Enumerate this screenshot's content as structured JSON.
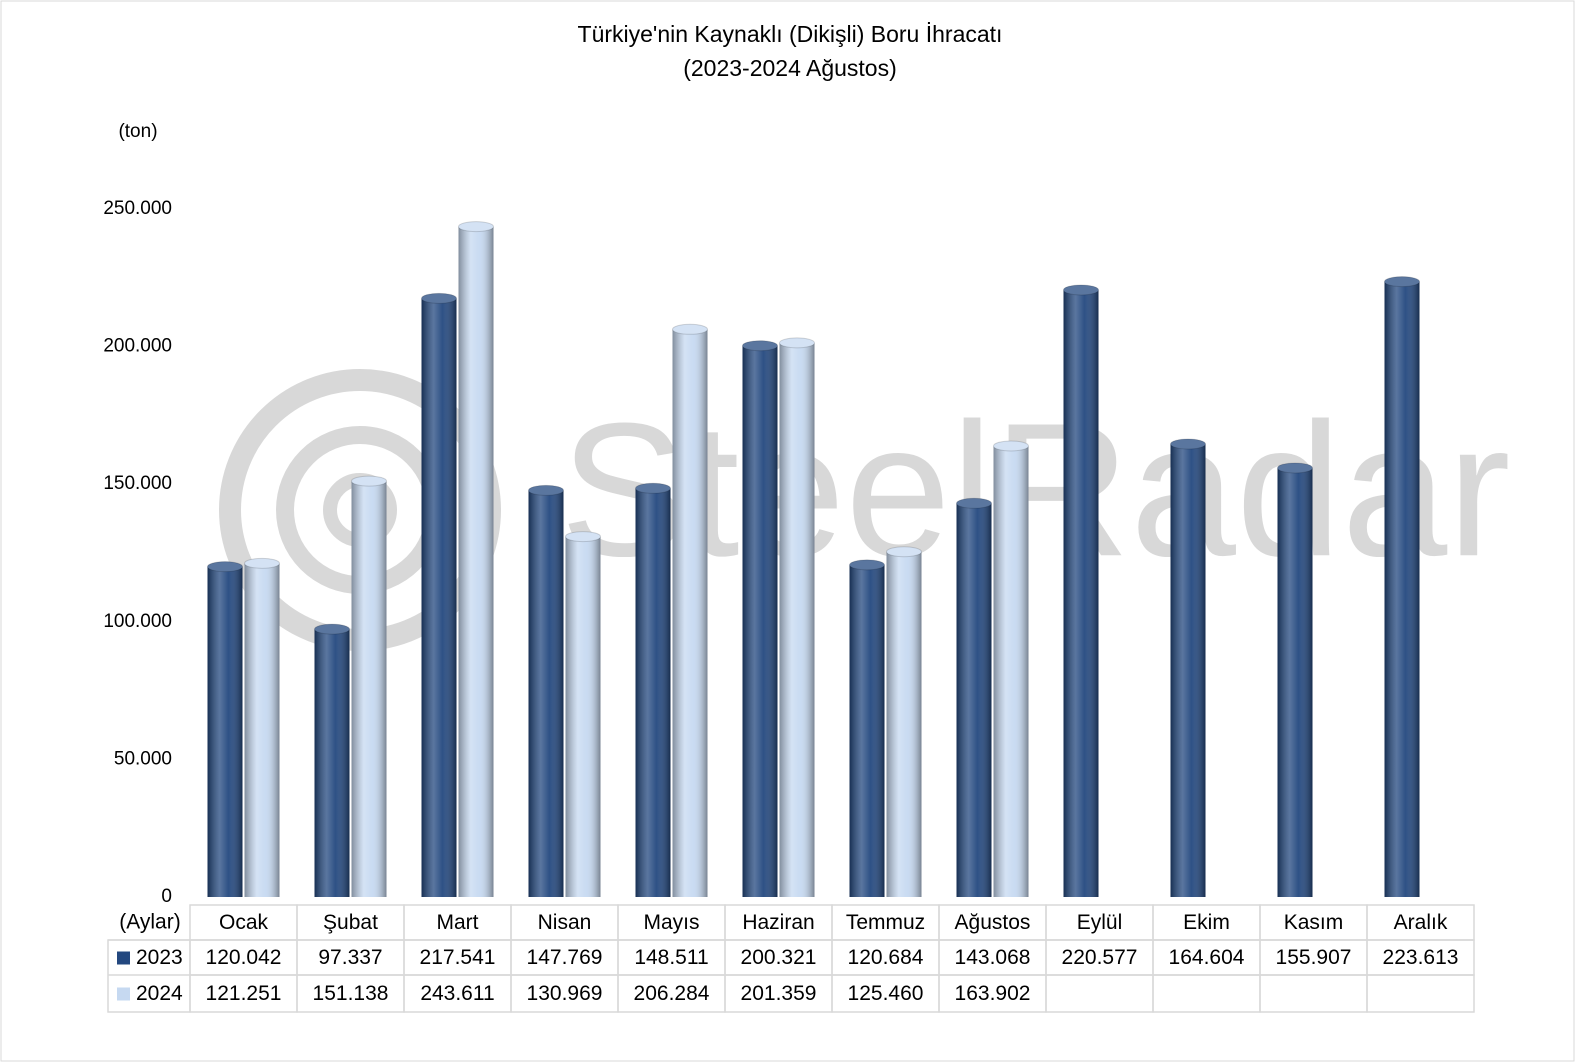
{
  "chart_data": {
    "type": "bar",
    "title": "Türkiye'nin Kaynaklı (Dikişli) Boru İhracatı",
    "subtitle": "(2023-2024 Ağustos)",
    "y_axis_label": "(ton)",
    "x_axis_label": "(Aylar)",
    "watermark": "SteelRadar",
    "categories": [
      "Ocak",
      "Şubat",
      "Mart",
      "Nisan",
      "Mayıs",
      "Haziran",
      "Temmuz",
      "Ağustos",
      "Eylül",
      "Ekim",
      "Kasım",
      "Aralık"
    ],
    "series": [
      {
        "name": "2023",
        "color": "#23487f",
        "values": [
          120042,
          97337,
          217541,
          147769,
          148511,
          200321,
          120684,
          143068,
          220577,
          164604,
          155907,
          223613
        ],
        "value_labels": [
          "120.042",
          "97.337",
          "217.541",
          "147.769",
          "148.511",
          "200.321",
          "120.684",
          "143.068",
          "220.577",
          "164.604",
          "155.907",
          "223.613"
        ]
      },
      {
        "name": "2024",
        "color": "#c6d9f1",
        "values": [
          121251,
          151138,
          243611,
          130969,
          206284,
          201359,
          125460,
          163902,
          null,
          null,
          null,
          null
        ],
        "value_labels": [
          "121.251",
          "151.138",
          "243.611",
          "130.969",
          "206.284",
          "201.359",
          "125.460",
          "163.902",
          null,
          null,
          null,
          null
        ]
      }
    ],
    "ylim": [
      0,
      250000
    ],
    "yticks": [
      0,
      {
        "value": 50000,
        "label": "50.000"
      },
      {
        "value": 100000,
        "label": "100.000"
      },
      {
        "value": 150000,
        "label": "150.000"
      },
      {
        "value": 200000,
        "label": "200.000"
      },
      {
        "value": 250000,
        "label": "250.000"
      }
    ],
    "grid": false,
    "data_table": true
  }
}
